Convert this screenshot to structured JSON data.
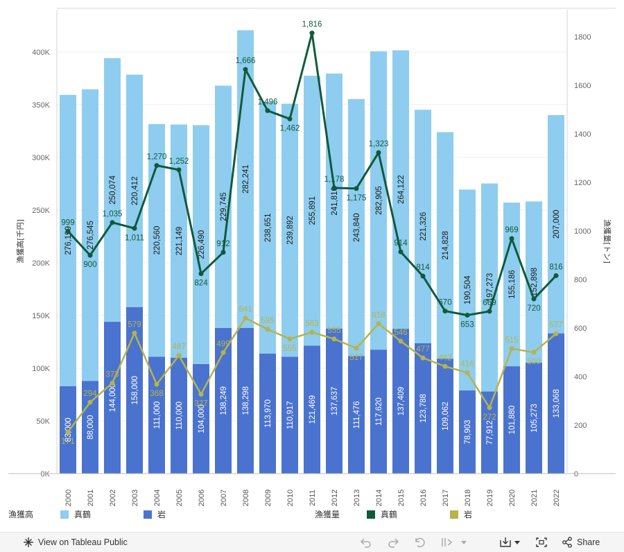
{
  "chart_data": {
    "type": "bar+line",
    "categories": [
      "2000",
      "2001",
      "2002",
      "2003",
      "2004",
      "2005",
      "2006",
      "2007",
      "2008",
      "2009",
      "2010",
      "2011",
      "2012",
      "2013",
      "2014",
      "2015",
      "2016",
      "2017",
      "2018",
      "2019",
      "2020",
      "2021",
      "2022"
    ],
    "left_axis": {
      "label": "漁獲高[千円]",
      "ticks": [
        "0K",
        "50K",
        "100K",
        "150K",
        "200K",
        "250K",
        "300K",
        "350K",
        "400K"
      ],
      "range": [
        0,
        400000
      ]
    },
    "right_axis": {
      "label": "漁獲量[トン]",
      "ticks": [
        "0",
        "200",
        "400",
        "600",
        "800",
        "1000",
        "1200",
        "1400",
        "1600",
        "1800"
      ],
      "range": [
        0,
        1800
      ]
    },
    "bar_series": [
      {
        "name": "岩",
        "color": "#4a73cf",
        "values": [
          83000,
          88000,
          144000,
          158000,
          111000,
          110000,
          104000,
          138249,
          138298,
          113970,
          110917,
          121469,
          137637,
          111476,
          117620,
          137409,
          123788,
          109062,
          78903,
          77912,
          101880,
          105273,
          133068
        ],
        "labels": [
          "83,000",
          "88,000",
          "144,000",
          "158,000",
          "111,000",
          "110,000",
          "104,000",
          "138,249",
          "138,298",
          "113,970",
          "110,917",
          "121,469",
          "137,637",
          "111,476",
          "117,620",
          "137,409",
          "123,788",
          "109,062",
          "78,903",
          "77,912",
          "101,880",
          "105,273",
          "133,068"
        ]
      },
      {
        "name": "真鶴",
        "color": "#8ecdef",
        "values": [
          276199,
          276545,
          250074,
          220412,
          220560,
          221149,
          226490,
          229745,
          282241,
          238651,
          239892,
          255891,
          241810,
          243840,
          282905,
          264122,
          221326,
          214828,
          190504,
          197273,
          155186,
          152898,
          207000
        ],
        "labels": [
          "276,199",
          "276,545",
          "250,074",
          "220,412",
          "220,560",
          "221,149",
          "226,490",
          "229,745",
          "282,241",
          "238,651",
          "239,892",
          "255,891",
          "241,810",
          "243,840",
          "282,905",
          "264,122",
          "221,326",
          "214,828",
          "190,504",
          "197,273",
          "155,186",
          "152,898",
          "207,000"
        ]
      }
    ],
    "line_series": [
      {
        "name": "真鶴",
        "color": "#0f5a3c",
        "values": [
          999,
          900,
          1035,
          1011,
          1270,
          1252,
          824,
          912,
          1666,
          1496,
          1462,
          1816,
          1178,
          1175,
          1323,
          914,
          814,
          670,
          653,
          669,
          969,
          720,
          816
        ],
        "labels": [
          "999",
          "900",
          "1,035",
          "1,011",
          "1,270",
          "1,252",
          "824",
          "912",
          "1,666",
          "1,496",
          "1,462",
          "1,816",
          "1,178",
          "1,175",
          "1,323",
          "914",
          "814",
          "670",
          "653",
          "669",
          "969",
          "720",
          "816"
        ]
      },
      {
        "name": "岩",
        "color": "#b6b44a",
        "values": [
          171,
          294,
          373,
          579,
          368,
          487,
          327,
          499,
          641,
          595,
          555,
          583,
          555,
          517,
          618,
          546,
          477,
          442,
          416,
          272,
          515,
          500,
          577
        ],
        "labels": [
          "171",
          "294",
          "373",
          "579",
          "368",
          "487",
          "327",
          "499",
          "641",
          "595",
          "555",
          "583",
          "555",
          "517",
          "618",
          "546",
          "477",
          "442",
          "416",
          "272",
          "515",
          "500",
          "577"
        ]
      }
    ],
    "grid": true
  },
  "legend": {
    "bars_title": "漁獲高",
    "bars": [
      {
        "label": "真鶴",
        "color": "#8ecdef"
      },
      {
        "label": "岩",
        "color": "#4a73cf"
      }
    ],
    "lines_title": "漁獲量",
    "lines": [
      {
        "label": "真鶴",
        "color": "#0f5a3c"
      },
      {
        "label": "岩",
        "color": "#b6b44a"
      }
    ]
  },
  "toolbar": {
    "view_label": "View on Tableau Public",
    "share_label": "Share"
  }
}
